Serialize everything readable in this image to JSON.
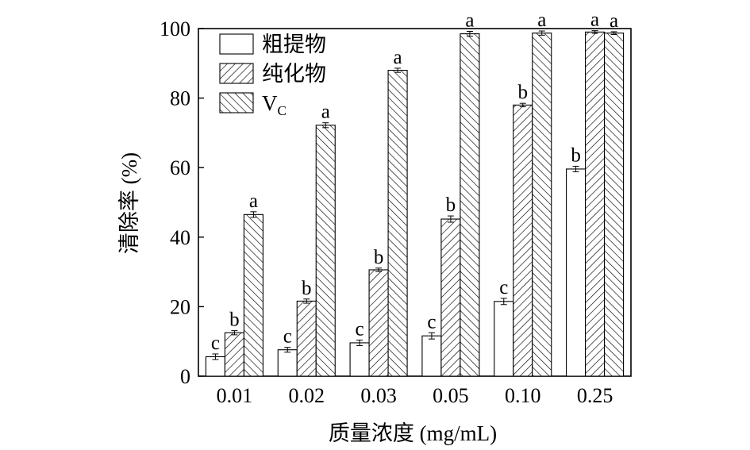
{
  "chart_data": {
    "type": "bar",
    "xlabel": "质量浓度 (mg/mL)",
    "ylabel": "清除率 (%)",
    "ylim": [
      0,
      100
    ],
    "yticks": [
      0,
      20,
      40,
      60,
      80,
      100
    ],
    "categories": [
      "0.01",
      "0.02",
      "0.03",
      "0.05",
      "0.10",
      "0.25"
    ],
    "series": [
      {
        "name": "粗提物",
        "pattern": "none",
        "values": [
          5.6,
          7.6,
          9.6,
          11.6,
          21.5,
          59.6
        ],
        "errors": [
          0.8,
          0.7,
          0.8,
          0.9,
          0.9,
          0.8
        ],
        "letters": [
          "c",
          "c",
          "c",
          "c",
          "c",
          "b"
        ]
      },
      {
        "name": "纯化物",
        "pattern": "hatch-forward",
        "values": [
          12.5,
          21.6,
          30.6,
          45.2,
          78.0,
          99.0
        ],
        "errors": [
          0.6,
          0.6,
          0.5,
          0.9,
          0.5,
          0.4
        ],
        "letters": [
          "b",
          "b",
          "b",
          "b",
          "b",
          "a"
        ]
      },
      {
        "name": "V",
        "name_subscript": "C",
        "pattern": "hatch-back",
        "values": [
          46.5,
          72.2,
          88.0,
          98.5,
          98.7,
          98.7
        ],
        "errors": [
          0.8,
          0.7,
          0.6,
          0.7,
          0.6,
          0.4
        ],
        "letters": [
          "a",
          "a",
          "a",
          "a",
          "a",
          "a"
        ]
      }
    ],
    "legend_position": "top-left",
    "grid": false
  }
}
